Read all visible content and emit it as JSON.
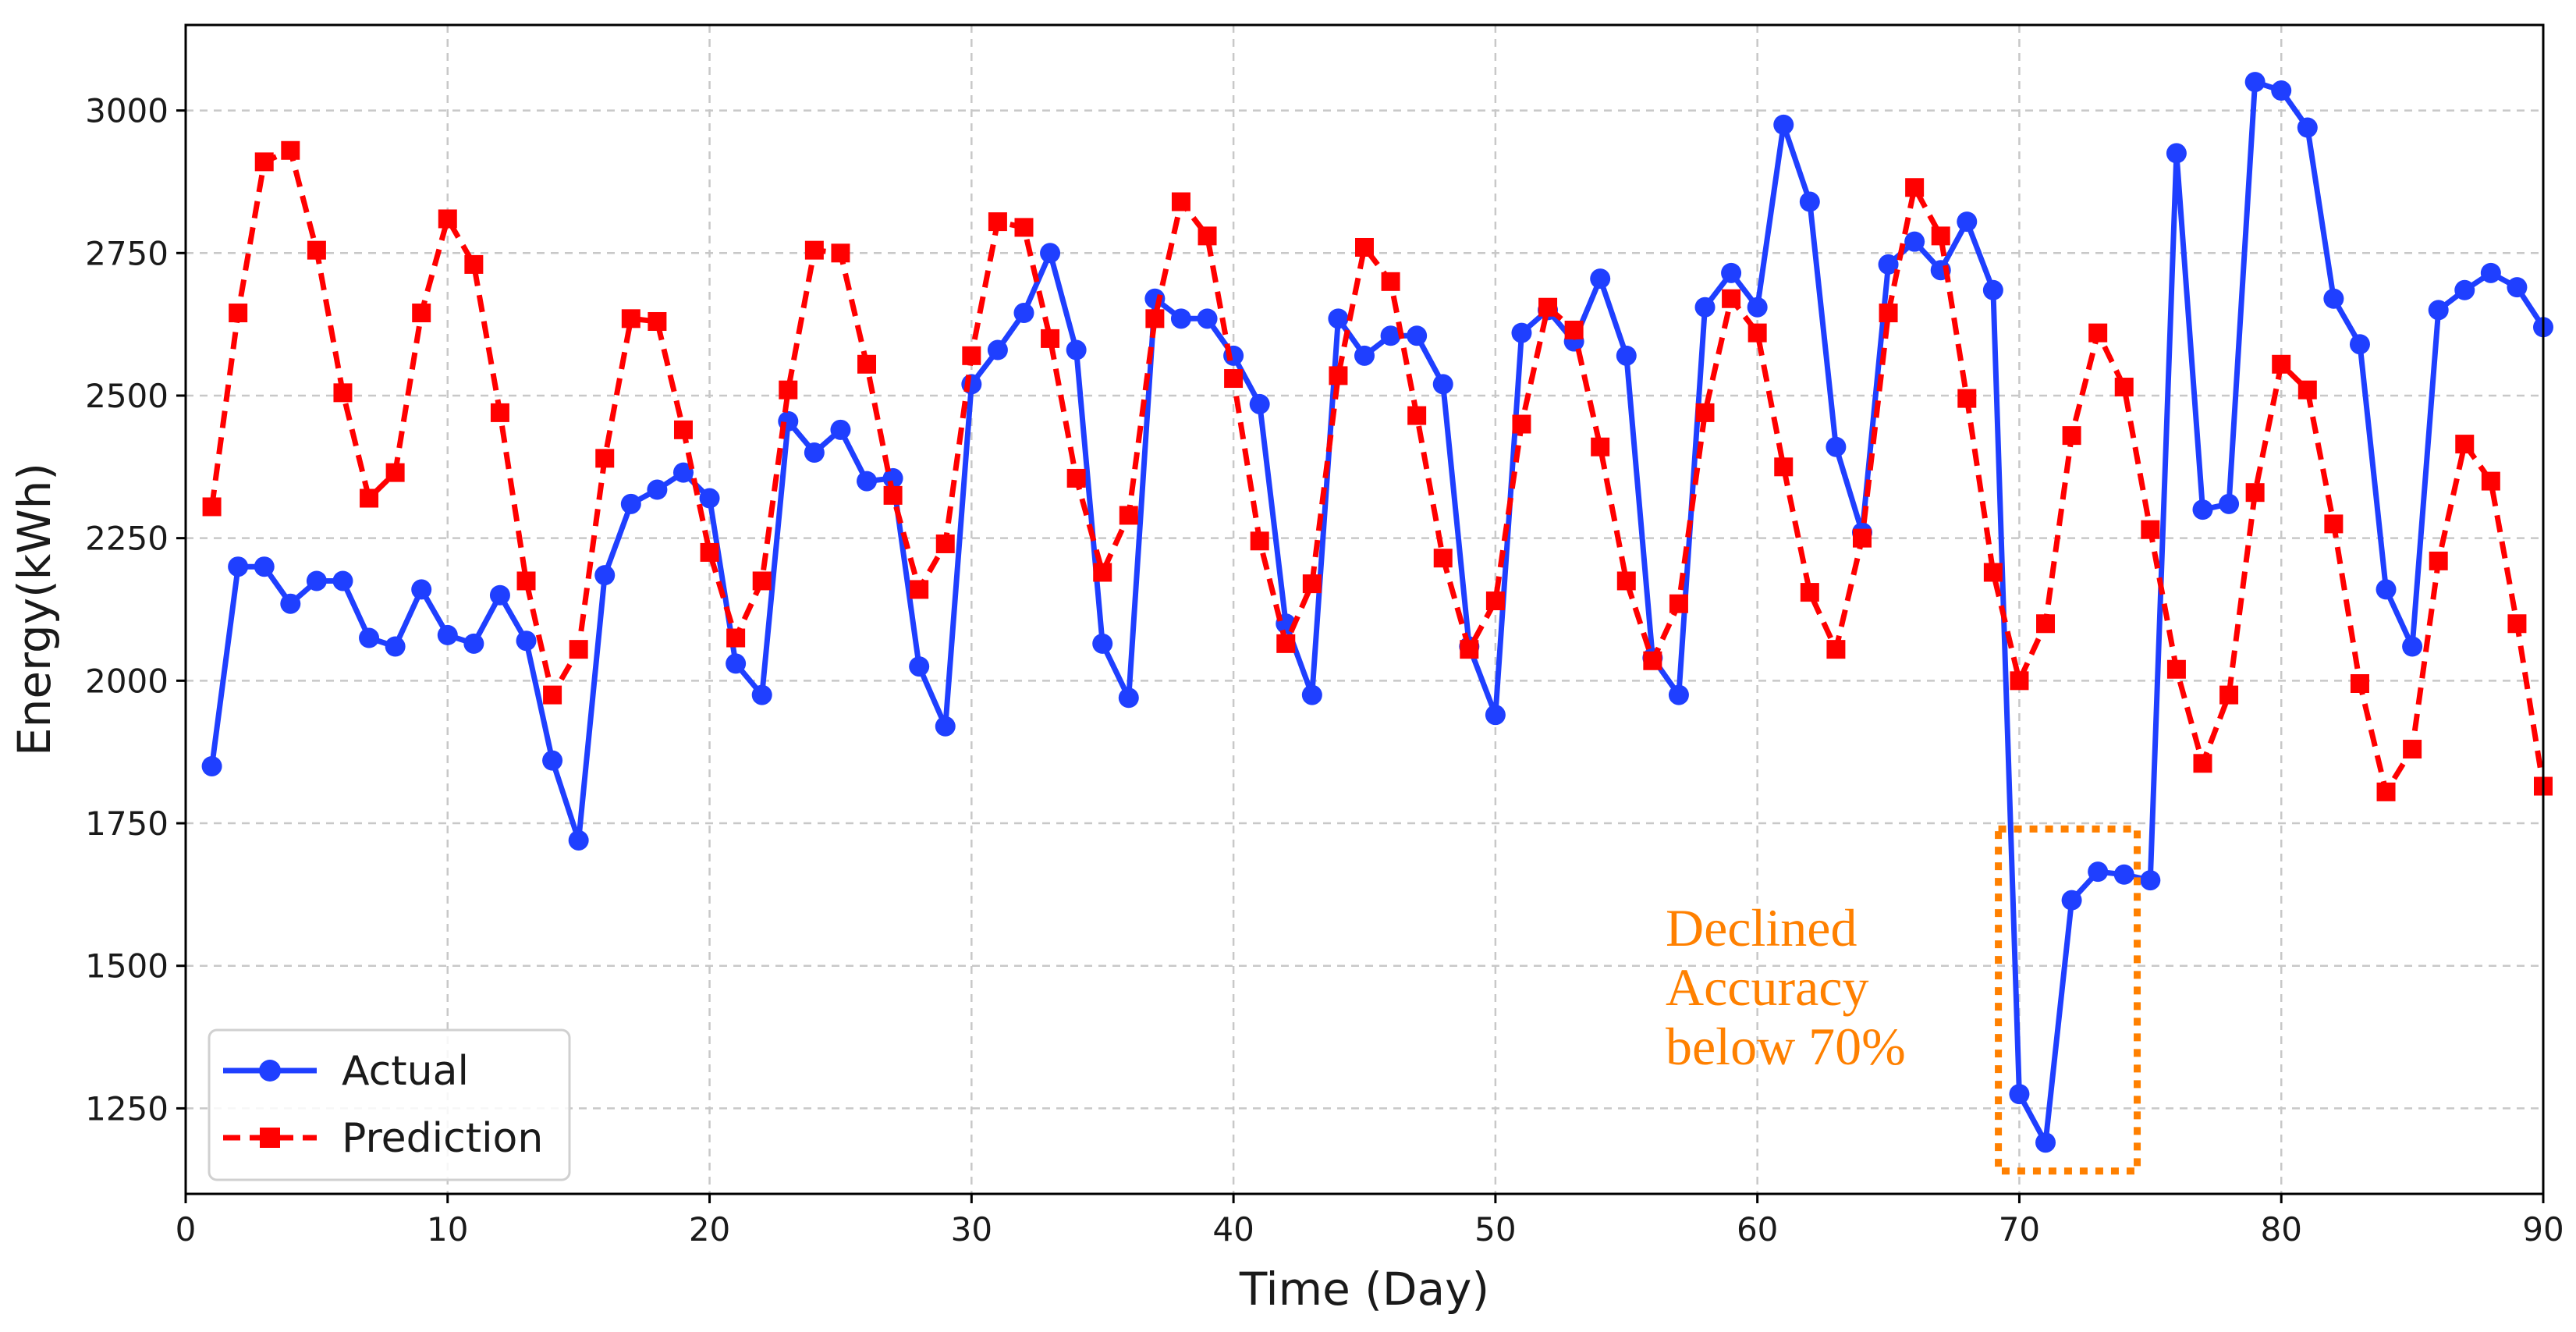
{
  "chart_data": {
    "type": "line",
    "title": "",
    "xlabel": "Time (Day)",
    "ylabel": "Energy(kWh)",
    "xlim": [
      0,
      90
    ],
    "ylim": [
      1100,
      3150
    ],
    "xticks": [
      0,
      10,
      20,
      30,
      40,
      50,
      60,
      70,
      80,
      90
    ],
    "yticks": [
      1250,
      1500,
      1750,
      2000,
      2250,
      2500,
      2750,
      3000
    ],
    "grid": true,
    "legend_position": "bottom-left",
    "series": [
      {
        "name": "Actual",
        "color": "#1f3fff",
        "line_style": "solid",
        "marker": "circle",
        "x": [
          1,
          2,
          3,
          4,
          5,
          6,
          7,
          8,
          9,
          10,
          11,
          12,
          13,
          14,
          15,
          16,
          17,
          18,
          19,
          20,
          21,
          22,
          23,
          24,
          25,
          26,
          27,
          28,
          29,
          30,
          31,
          32,
          33,
          34,
          35,
          36,
          37,
          38,
          39,
          40,
          41,
          42,
          43,
          44,
          45,
          46,
          47,
          48,
          49,
          50,
          51,
          52,
          53,
          54,
          55,
          56,
          57,
          58,
          59,
          60,
          61,
          62,
          63,
          64,
          65,
          66,
          67,
          68,
          69,
          70,
          71,
          72,
          73,
          74,
          75,
          76,
          77,
          78,
          79,
          80,
          81,
          82,
          83,
          84,
          85,
          86,
          87,
          88,
          89,
          90
        ],
        "values": [
          1850,
          2200,
          2200,
          2135,
          2175,
          2175,
          2075,
          2060,
          2160,
          2080,
          2065,
          2150,
          2070,
          1860,
          1720,
          2185,
          2310,
          2335,
          2365,
          2320,
          2030,
          1975,
          2455,
          2400,
          2440,
          2350,
          2355,
          2025,
          1920,
          2520,
          2580,
          2645,
          2750,
          2580,
          2065,
          1970,
          2670,
          2635,
          2635,
          2570,
          2485,
          2100,
          1975,
          2635,
          2570,
          2605,
          2605,
          2520,
          2060,
          1940,
          2610,
          2650,
          2595,
          2705,
          2570,
          2040,
          1975,
          2655,
          2715,
          2655,
          2975,
          2840,
          2410,
          2260,
          2730,
          2770,
          2720,
          2805,
          2685,
          1275,
          1190,
          1615,
          1665,
          1660,
          1650,
          2925,
          2300,
          2310,
          3050,
          3035,
          2970,
          2670,
          2590,
          2160,
          2060,
          2650,
          2685,
          2715,
          2690,
          2620
        ]
      },
      {
        "name": "Prediction",
        "color": "#ff0000",
        "line_style": "dashed",
        "marker": "square",
        "x": [
          1,
          2,
          3,
          4,
          5,
          6,
          7,
          8,
          9,
          10,
          11,
          12,
          13,
          14,
          15,
          16,
          17,
          18,
          19,
          20,
          21,
          22,
          23,
          24,
          25,
          26,
          27,
          28,
          29,
          30,
          31,
          32,
          33,
          34,
          35,
          36,
          37,
          38,
          39,
          40,
          41,
          42,
          43,
          44,
          45,
          46,
          47,
          48,
          49,
          50,
          51,
          52,
          53,
          54,
          55,
          56,
          57,
          58,
          59,
          60,
          61,
          62,
          63,
          64,
          65,
          66,
          67,
          68,
          69,
          70,
          71,
          72,
          73,
          74,
          75,
          76,
          77,
          78,
          79,
          80,
          81,
          82,
          83,
          84,
          85,
          86,
          87,
          88,
          89,
          90
        ],
        "values": [
          2305,
          2645,
          2910,
          2930,
          2755,
          2505,
          2320,
          2365,
          2645,
          2810,
          2730,
          2470,
          2175,
          1975,
          2055,
          2390,
          2635,
          2630,
          2440,
          2225,
          2075,
          2175,
          2510,
          2755,
          2750,
          2555,
          2325,
          2160,
          2240,
          2570,
          2805,
          2795,
          2600,
          2355,
          2190,
          2290,
          2635,
          2840,
          2780,
          2530,
          2245,
          2065,
          2170,
          2535,
          2760,
          2700,
          2465,
          2215,
          2055,
          2140,
          2450,
          2655,
          2615,
          2410,
          2175,
          2035,
          2135,
          2470,
          2670,
          2610,
          2375,
          2155,
          2055,
          2250,
          2645,
          2865,
          2780,
          2495,
          2190,
          2000,
          2100,
          2430,
          2610,
          2515,
          2265,
          2020,
          1855,
          1975,
          2330,
          2555,
          2510,
          2275,
          1995,
          1805,
          1880,
          2210,
          2415,
          2350,
          2100,
          1815
        ]
      }
    ],
    "annotations": [
      {
        "lines": [
          "Declined",
          "Accuracy",
          "below 70%"
        ],
        "color": "#ff8000",
        "box_x_range": [
          69.2,
          74.5
        ],
        "box_y_range": [
          1140,
          1740
        ]
      }
    ]
  }
}
